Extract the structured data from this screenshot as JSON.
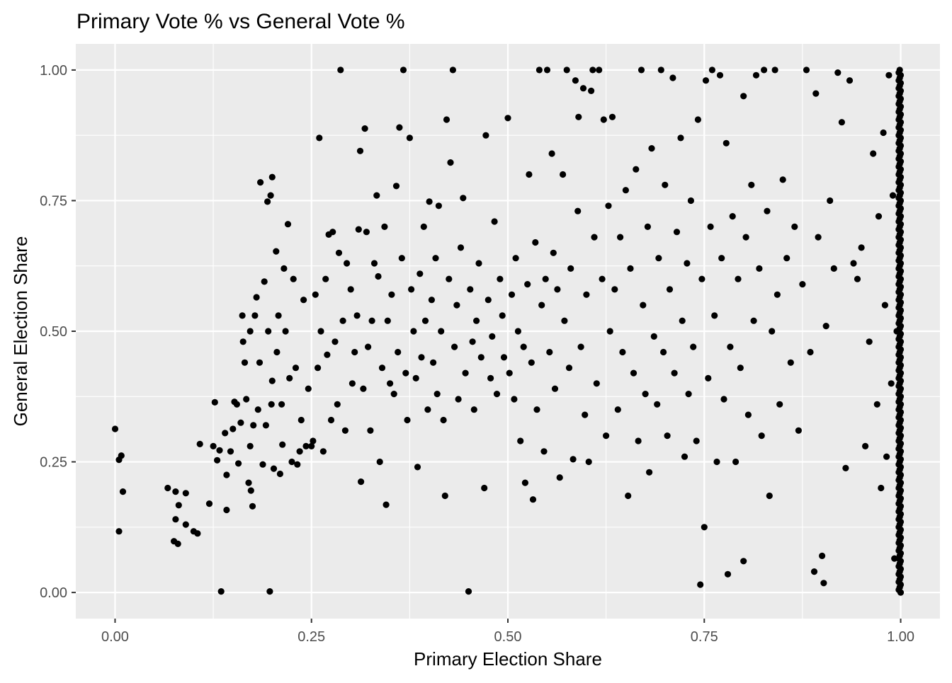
{
  "chart_data": {
    "type": "scatter",
    "title": "Primary Vote % vs General Vote %",
    "xlabel": "Primary Election Share",
    "ylabel": "General Election Share",
    "xlim": [
      -0.05,
      1.05
    ],
    "ylim": [
      -0.05,
      1.05
    ],
    "x_ticks": [
      0.0,
      0.25,
      0.5,
      0.75,
      1.0
    ],
    "x_tick_labels": [
      "0.00",
      "0.25",
      "0.50",
      "0.75",
      "1.00"
    ],
    "y_ticks": [
      0.0,
      0.25,
      0.5,
      0.75,
      1.0
    ],
    "y_tick_labels": [
      "0.00",
      "0.25",
      "0.50",
      "0.75",
      "1.00"
    ],
    "grid": true,
    "point_color": "#000000",
    "panel_color": "#ebebeb",
    "grid_color": "#ffffff",
    "points": [
      [
        0.0,
        0.313
      ],
      [
        0.005,
        0.117
      ],
      [
        0.005,
        0.254
      ],
      [
        0.008,
        0.262
      ],
      [
        0.01,
        0.193
      ],
      [
        0.067,
        0.2
      ],
      [
        0.075,
        0.098
      ],
      [
        0.077,
        0.193
      ],
      [
        0.077,
        0.14
      ],
      [
        0.08,
        0.093
      ],
      [
        0.081,
        0.167
      ],
      [
        0.09,
        0.19
      ],
      [
        0.09,
        0.13
      ],
      [
        0.1,
        0.117
      ],
      [
        0.105,
        0.113
      ],
      [
        0.108,
        0.284
      ],
      [
        0.12,
        0.17
      ],
      [
        0.125,
        0.28
      ],
      [
        0.127,
        0.364
      ],
      [
        0.13,
        0.253
      ],
      [
        0.133,
        0.272
      ],
      [
        0.135,
        0.002
      ],
      [
        0.14,
        0.305
      ],
      [
        0.142,
        0.225
      ],
      [
        0.142,
        0.158
      ],
      [
        0.147,
        0.27
      ],
      [
        0.15,
        0.313
      ],
      [
        0.152,
        0.365
      ],
      [
        0.155,
        0.36
      ],
      [
        0.157,
        0.247
      ],
      [
        0.16,
        0.325
      ],
      [
        0.162,
        0.53
      ],
      [
        0.163,
        0.48
      ],
      [
        0.165,
        0.44
      ],
      [
        0.167,
        0.37
      ],
      [
        0.17,
        0.21
      ],
      [
        0.172,
        0.28
      ],
      [
        0.172,
        0.5
      ],
      [
        0.173,
        0.195
      ],
      [
        0.175,
        0.165
      ],
      [
        0.176,
        0.32
      ],
      [
        0.178,
        0.53
      ],
      [
        0.18,
        0.565
      ],
      [
        0.182,
        0.35
      ],
      [
        0.184,
        0.44
      ],
      [
        0.185,
        0.785
      ],
      [
        0.188,
        0.245
      ],
      [
        0.19,
        0.595
      ],
      [
        0.192,
        0.32
      ],
      [
        0.194,
        0.748
      ],
      [
        0.195,
        0.5
      ],
      [
        0.197,
        0.002
      ],
      [
        0.198,
        0.76
      ],
      [
        0.199,
        0.36
      ],
      [
        0.2,
        0.795
      ],
      [
        0.2,
        0.405
      ],
      [
        0.202,
        0.237
      ],
      [
        0.205,
        0.653
      ],
      [
        0.206,
        0.46
      ],
      [
        0.208,
        0.53
      ],
      [
        0.21,
        0.227
      ],
      [
        0.212,
        0.36
      ],
      [
        0.213,
        0.283
      ],
      [
        0.215,
        0.62
      ],
      [
        0.217,
        0.5
      ],
      [
        0.22,
        0.705
      ],
      [
        0.222,
        0.41
      ],
      [
        0.225,
        0.25
      ],
      [
        0.227,
        0.6
      ],
      [
        0.23,
        0.43
      ],
      [
        0.232,
        0.245
      ],
      [
        0.235,
        0.27
      ],
      [
        0.237,
        0.33
      ],
      [
        0.24,
        0.56
      ],
      [
        0.243,
        0.28
      ],
      [
        0.246,
        0.39
      ],
      [
        0.25,
        0.28
      ],
      [
        0.252,
        0.29
      ],
      [
        0.255,
        0.57
      ],
      [
        0.258,
        0.43
      ],
      [
        0.26,
        0.87
      ],
      [
        0.262,
        0.5
      ],
      [
        0.265,
        0.27
      ],
      [
        0.268,
        0.6
      ],
      [
        0.27,
        0.455
      ],
      [
        0.272,
        0.685
      ],
      [
        0.275,
        0.33
      ],
      [
        0.277,
        0.69
      ],
      [
        0.28,
        0.48
      ],
      [
        0.283,
        0.36
      ],
      [
        0.285,
        0.65
      ],
      [
        0.287,
        1.0
      ],
      [
        0.29,
        0.52
      ],
      [
        0.293,
        0.31
      ],
      [
        0.295,
        0.63
      ],
      [
        0.3,
        0.58
      ],
      [
        0.302,
        0.4
      ],
      [
        0.305,
        0.46
      ],
      [
        0.308,
        0.53
      ],
      [
        0.31,
        0.695
      ],
      [
        0.312,
        0.845
      ],
      [
        0.313,
        0.212
      ],
      [
        0.316,
        0.39
      ],
      [
        0.318,
        0.888
      ],
      [
        0.32,
        0.69
      ],
      [
        0.322,
        0.47
      ],
      [
        0.325,
        0.31
      ],
      [
        0.327,
        0.52
      ],
      [
        0.33,
        0.63
      ],
      [
        0.333,
        0.76
      ],
      [
        0.335,
        0.605
      ],
      [
        0.337,
        0.25
      ],
      [
        0.34,
        0.43
      ],
      [
        0.343,
        0.7
      ],
      [
        0.345,
        0.168
      ],
      [
        0.347,
        0.52
      ],
      [
        0.35,
        0.4
      ],
      [
        0.352,
        0.57
      ],
      [
        0.355,
        0.38
      ],
      [
        0.358,
        0.778
      ],
      [
        0.36,
        0.46
      ],
      [
        0.362,
        0.89
      ],
      [
        0.365,
        0.64
      ],
      [
        0.367,
        1.0
      ],
      [
        0.37,
        0.42
      ],
      [
        0.372,
        0.33
      ],
      [
        0.375,
        0.87
      ],
      [
        0.377,
        0.58
      ],
      [
        0.38,
        0.5
      ],
      [
        0.383,
        0.41
      ],
      [
        0.385,
        0.24
      ],
      [
        0.388,
        0.61
      ],
      [
        0.39,
        0.45
      ],
      [
        0.393,
        0.7
      ],
      [
        0.395,
        0.52
      ],
      [
        0.398,
        0.35
      ],
      [
        0.4,
        0.748
      ],
      [
        0.403,
        0.56
      ],
      [
        0.405,
        0.44
      ],
      [
        0.408,
        0.64
      ],
      [
        0.41,
        0.38
      ],
      [
        0.412,
        0.74
      ],
      [
        0.415,
        0.5
      ],
      [
        0.418,
        0.33
      ],
      [
        0.42,
        0.185
      ],
      [
        0.422,
        0.905
      ],
      [
        0.425,
        0.6
      ],
      [
        0.427,
        0.823
      ],
      [
        0.43,
        1.0
      ],
      [
        0.432,
        0.47
      ],
      [
        0.435,
        0.55
      ],
      [
        0.437,
        0.37
      ],
      [
        0.44,
        0.66
      ],
      [
        0.443,
        0.755
      ],
      [
        0.446,
        0.42
      ],
      [
        0.45,
        0.002
      ],
      [
        0.452,
        0.58
      ],
      [
        0.455,
        0.48
      ],
      [
        0.457,
        0.35
      ],
      [
        0.46,
        0.52
      ],
      [
        0.463,
        0.63
      ],
      [
        0.466,
        0.45
      ],
      [
        0.47,
        0.2
      ],
      [
        0.472,
        0.875
      ],
      [
        0.475,
        0.56
      ],
      [
        0.478,
        0.41
      ],
      [
        0.48,
        0.49
      ],
      [
        0.483,
        0.71
      ],
      [
        0.486,
        0.38
      ],
      [
        0.49,
        0.6
      ],
      [
        0.493,
        0.53
      ],
      [
        0.495,
        0.45
      ],
      [
        0.5,
        0.908
      ],
      [
        0.502,
        0.42
      ],
      [
        0.505,
        0.57
      ],
      [
        0.508,
        0.37
      ],
      [
        0.51,
        0.64
      ],
      [
        0.513,
        0.5
      ],
      [
        0.516,
        0.29
      ],
      [
        0.52,
        0.47
      ],
      [
        0.522,
        0.21
      ],
      [
        0.525,
        0.59
      ],
      [
        0.527,
        0.8
      ],
      [
        0.53,
        0.44
      ],
      [
        0.532,
        0.178
      ],
      [
        0.535,
        0.67
      ],
      [
        0.537,
        0.35
      ],
      [
        0.54,
        1.0
      ],
      [
        0.543,
        0.55
      ],
      [
        0.546,
        0.27
      ],
      [
        0.548,
        0.6
      ],
      [
        0.55,
        1.0
      ],
      [
        0.553,
        0.46
      ],
      [
        0.556,
        0.84
      ],
      [
        0.558,
        0.65
      ],
      [
        0.56,
        0.39
      ],
      [
        0.563,
        0.58
      ],
      [
        0.566,
        0.22
      ],
      [
        0.57,
        0.8
      ],
      [
        0.572,
        0.52
      ],
      [
        0.575,
        1.0
      ],
      [
        0.578,
        0.43
      ],
      [
        0.58,
        0.62
      ],
      [
        0.583,
        0.255
      ],
      [
        0.586,
        0.98
      ],
      [
        0.589,
        0.73
      ],
      [
        0.59,
        0.91
      ],
      [
        0.593,
        0.47
      ],
      [
        0.596,
        0.965
      ],
      [
        0.598,
        0.34
      ],
      [
        0.6,
        0.57
      ],
      [
        0.603,
        0.25
      ],
      [
        0.606,
        0.96
      ],
      [
        0.608,
        1.0
      ],
      [
        0.61,
        0.68
      ],
      [
        0.613,
        0.4
      ],
      [
        0.616,
        1.0
      ],
      [
        0.62,
        0.6
      ],
      [
        0.622,
        0.905
      ],
      [
        0.625,
        0.3
      ],
      [
        0.628,
        0.74
      ],
      [
        0.63,
        0.5
      ],
      [
        0.633,
        0.91
      ],
      [
        0.636,
        0.58
      ],
      [
        0.64,
        0.35
      ],
      [
        0.643,
        0.68
      ],
      [
        0.646,
        0.46
      ],
      [
        0.65,
        0.77
      ],
      [
        0.653,
        0.185
      ],
      [
        0.656,
        0.62
      ],
      [
        0.66,
        0.42
      ],
      [
        0.663,
        0.81
      ],
      [
        0.666,
        0.29
      ],
      [
        0.67,
        1.0
      ],
      [
        0.672,
        0.55
      ],
      [
        0.675,
        0.38
      ],
      [
        0.678,
        0.7
      ],
      [
        0.68,
        0.23
      ],
      [
        0.683,
        0.85
      ],
      [
        0.686,
        0.49
      ],
      [
        0.69,
        0.36
      ],
      [
        0.692,
        0.64
      ],
      [
        0.695,
        1.0
      ],
      [
        0.698,
        0.46
      ],
      [
        0.7,
        0.78
      ],
      [
        0.703,
        0.3
      ],
      [
        0.706,
        0.58
      ],
      [
        0.71,
        0.985
      ],
      [
        0.712,
        0.42
      ],
      [
        0.715,
        0.69
      ],
      [
        0.72,
        0.87
      ],
      [
        0.722,
        0.52
      ],
      [
        0.725,
        0.26
      ],
      [
        0.728,
        0.63
      ],
      [
        0.73,
        0.38
      ],
      [
        0.733,
        0.75
      ],
      [
        0.736,
        0.47
      ],
      [
        0.74,
        0.29
      ],
      [
        0.742,
        0.905
      ],
      [
        0.745,
        0.015
      ],
      [
        0.747,
        0.6
      ],
      [
        0.75,
        0.125
      ],
      [
        0.752,
        0.98
      ],
      [
        0.755,
        0.41
      ],
      [
        0.758,
        0.7
      ],
      [
        0.76,
        1.0
      ],
      [
        0.763,
        0.53
      ],
      [
        0.766,
        0.25
      ],
      [
        0.77,
        0.99
      ],
      [
        0.772,
        0.64
      ],
      [
        0.775,
        0.37
      ],
      [
        0.778,
        0.86
      ],
      [
        0.78,
        0.035
      ],
      [
        0.783,
        0.47
      ],
      [
        0.786,
        0.72
      ],
      [
        0.79,
        0.25
      ],
      [
        0.793,
        0.6
      ],
      [
        0.796,
        0.43
      ],
      [
        0.8,
        0.06
      ],
      [
        0.8,
        0.95
      ],
      [
        0.803,
        0.68
      ],
      [
        0.806,
        0.34
      ],
      [
        0.81,
        0.78
      ],
      [
        0.813,
        0.52
      ],
      [
        0.816,
        0.99
      ],
      [
        0.82,
        0.62
      ],
      [
        0.823,
        0.3
      ],
      [
        0.826,
        1.0
      ],
      [
        0.83,
        0.73
      ],
      [
        0.833,
        0.185
      ],
      [
        0.836,
        0.5
      ],
      [
        0.84,
        1.0
      ],
      [
        0.843,
        0.57
      ],
      [
        0.846,
        0.36
      ],
      [
        0.85,
        0.79
      ],
      [
        0.855,
        0.64
      ],
      [
        0.86,
        0.44
      ],
      [
        0.865,
        0.7
      ],
      [
        0.87,
        0.31
      ],
      [
        0.875,
        0.59
      ],
      [
        0.88,
        1.0
      ],
      [
        0.885,
        0.46
      ],
      [
        0.89,
        0.04
      ],
      [
        0.892,
        0.955
      ],
      [
        0.895,
        0.68
      ],
      [
        0.9,
        0.07
      ],
      [
        0.902,
        0.018
      ],
      [
        0.905,
        0.51
      ],
      [
        0.91,
        0.75
      ],
      [
        0.915,
        0.62
      ],
      [
        0.92,
        0.995
      ],
      [
        0.925,
        0.9
      ],
      [
        0.93,
        0.238
      ],
      [
        0.935,
        0.98
      ],
      [
        0.94,
        0.63
      ],
      [
        0.945,
        0.6
      ],
      [
        0.95,
        0.66
      ],
      [
        0.955,
        0.28
      ],
      [
        0.96,
        0.48
      ],
      [
        0.965,
        0.84
      ],
      [
        0.97,
        0.36
      ],
      [
        0.972,
        0.72
      ],
      [
        0.975,
        0.2
      ],
      [
        0.978,
        0.88
      ],
      [
        0.98,
        0.55
      ],
      [
        0.982,
        0.26
      ],
      [
        0.985,
        0.99
      ],
      [
        0.988,
        0.4
      ],
      [
        0.99,
        0.76
      ],
      [
        0.992,
        0.065
      ],
      [
        0.995,
        0.5
      ]
    ]
  }
}
